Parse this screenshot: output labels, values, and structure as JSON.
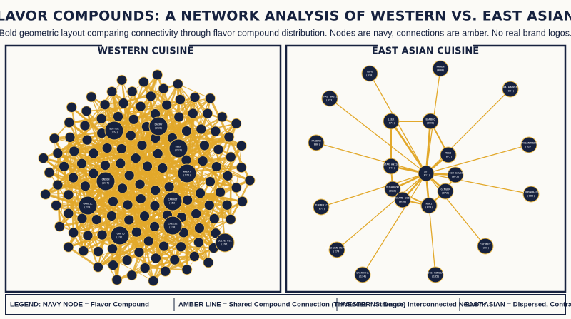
{
  "header": {
    "title": "SHARED FLAVOR COMPOUNDS: A NETWORK ANALYSIS OF WESTERN VS. EAST ASIAN CUISINES",
    "subtitle": "Bold geometric layout comparing connectivity through flavor compound distribution. Nodes are navy, connections are amber. No real brand logos."
  },
  "western": {
    "title": "WESTERN CUISINE",
    "nodes": [
      {
        "name": "BUTTER",
        "count": "(274)"
      },
      {
        "name": "DAIRY",
        "count": "(210)"
      },
      {
        "name": "BEEF",
        "count": "(212)"
      },
      {
        "name": "WHEAT",
        "count": "(171)"
      },
      {
        "name": "ONION",
        "count": "(274)"
      },
      {
        "name": "GARLIC",
        "count": "(220)"
      },
      {
        "name": "CARROT",
        "count": "(152)"
      },
      {
        "name": "CHEESE",
        "count": "(178)"
      },
      {
        "name": "TOMATO",
        "count": "(132)"
      },
      {
        "name": "OLIVE OIL",
        "count": "(196)"
      }
    ]
  },
  "east_asian": {
    "title": "EAST ASIAN CUISINE",
    "nodes": [
      {
        "name": "SOY",
        "count": "(011)"
      },
      {
        "name": "TOFU",
        "count": "(030)"
      },
      {
        "name": "RAMEN",
        "count": "(030)"
      },
      {
        "name": "KALAMANSI",
        "count": "(034)"
      },
      {
        "name": "THAI BASIL",
        "count": "(033)"
      },
      {
        "name": "LEEK",
        "count": "(071)"
      },
      {
        "name": "BAMBOO",
        "count": "(020)"
      },
      {
        "name": "MISO",
        "count": "(075)"
      },
      {
        "name": "PANDAN",
        "count": "(006)"
      },
      {
        "name": "CHRYSANTHEMUM",
        "count": "(027)"
      },
      {
        "name": "STAR ANISE",
        "count": "(047)"
      },
      {
        "name": "FISH SAUCE",
        "count": "(075)"
      },
      {
        "name": "GINGER",
        "count": "(072)"
      },
      {
        "name": "MUSHROOM",
        "count": "(022)"
      },
      {
        "name": "SESAME SEED",
        "count": "(078)"
      },
      {
        "name": "NORI",
        "count": "(020)"
      },
      {
        "name": "LEMONGRASS",
        "count": "(082)"
      },
      {
        "name": "TURMERIC",
        "count": "(079)"
      },
      {
        "name": "SZECHUAN PEPPER",
        "count": "(274)"
      },
      {
        "name": "COCONUT",
        "count": "(360)"
      },
      {
        "name": "SRIRACHA",
        "count": "(174)"
      },
      {
        "name": "RICE VINEGAR",
        "count": "(135)"
      }
    ]
  },
  "legend": {
    "items": [
      "LEGEND: NAVY NODE = Flavor Compound",
      "AMBER LINE = Shared Compound Connection (Thickness = Strength)",
      "WESTERN = Dense, Interconnected Network",
      "EAST ASIAN = Dispersed, Contrasting Network"
    ]
  }
}
